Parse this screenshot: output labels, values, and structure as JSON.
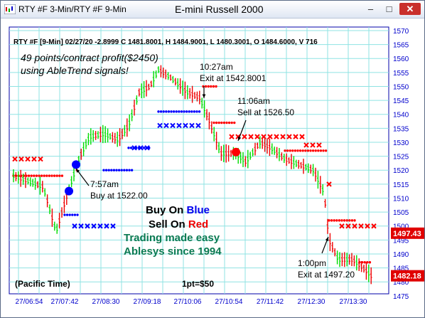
{
  "window": {
    "title": "RTY #F 3-Min/RTY #F 9-Min",
    "chart_title": "E-mini Russell 2000",
    "icons": [
      "chart-app-icon",
      "minimize-icon",
      "maximize-icon",
      "close-icon"
    ],
    "min_glyph": "–",
    "max_glyph": "□",
    "close_glyph": "✕"
  },
  "header": {
    "info": "RTY #F [9-Min] 02/27/20  -2.8999 C 1481.8001, H 1484.9001, L 1480.3001, O 1484.6000, V 716"
  },
  "notes": {
    "profit_line1": "49 points/contract profit($2450)",
    "profit_line2": "using AbleTrend signals!"
  },
  "annotations": {
    "buy_time": "7:57am",
    "buy_price": "Buy at 1522.00",
    "exit1_time": "10:27am",
    "exit1_price": "Exit at 1542.8001",
    "sell_time": "11:06am",
    "sell_price": "Sell at 1526.50",
    "exit2_time": "1:00pm",
    "exit2_price": "Exit at 1497.20"
  },
  "promo": {
    "buy_on": "Buy On ",
    "blue_word": "Blue",
    "sell_on": "Sell On ",
    "red_word": "Red",
    "line3": "Trading made easy",
    "line4": "Ablesys since 1994"
  },
  "footer": {
    "timezone": "(Pacific Time)",
    "point_value": "1pt=$50"
  },
  "colors": {
    "grid": "#8fe3e3",
    "axis_text": "#0000cc",
    "up_bar": "#00dd00",
    "down_bar": "#ee0000",
    "blue_signal": "#0000ff",
    "red_signal": "#ff0000",
    "promo_green": "#0a7a52",
    "price_tag": "#e00000"
  },
  "chart_data": {
    "type": "bar",
    "ylim": [
      1475,
      1572
    ],
    "y_ticks": [
      1475,
      1480,
      1485,
      1490,
      1495,
      1500,
      1505,
      1510,
      1515,
      1520,
      1525,
      1530,
      1535,
      1540,
      1545,
      1550,
      1555,
      1560,
      1565,
      1570
    ],
    "y_tick_labels": [
      "1475",
      "1480",
      "1485",
      "1490",
      "1495",
      "1500",
      "1505",
      "1510",
      "1515",
      "1520",
      "1525",
      "1530",
      "1535",
      "1540",
      "1545",
      "1550",
      "1555",
      "1560",
      "1565",
      "1570"
    ],
    "x_tick_labels": [
      "27/06:54",
      "27/07:42",
      "27/08:30",
      "27/09:18",
      "27/10:06",
      "27/10:54",
      "27/11:42",
      "27/12:30",
      "27/13:30"
    ],
    "price_tags": [
      {
        "label": "1497.43",
        "value": 1497.43
      },
      {
        "label": "1482.18",
        "value": 1482.18
      }
    ],
    "signals": [
      {
        "kind": "buy",
        "value": 1522.0
      },
      {
        "kind": "buy",
        "value": 1512.5
      },
      {
        "kind": "exit",
        "value": 1542.8
      },
      {
        "kind": "sell",
        "value": 1526.5
      },
      {
        "kind": "exit",
        "value": 1497.2
      }
    ]
  }
}
